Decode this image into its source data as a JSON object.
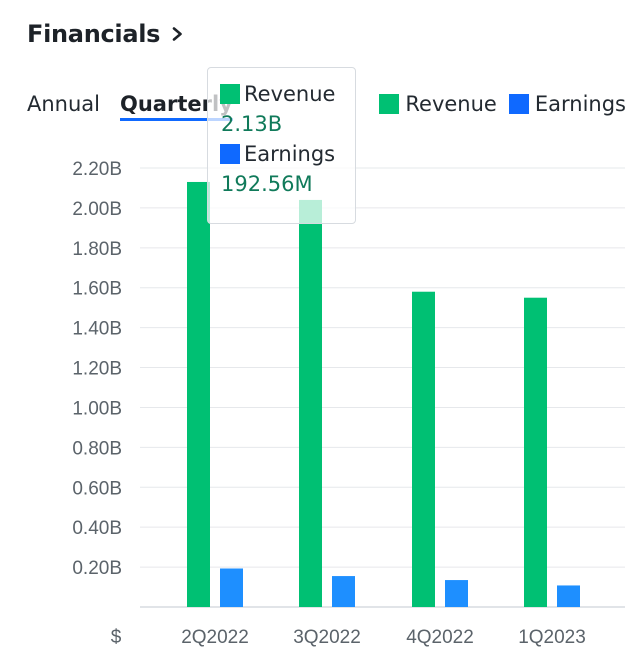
{
  "header": {
    "title": "Financials"
  },
  "tabs": [
    {
      "label": "Annual"
    },
    {
      "label": "Quarterly"
    }
  ],
  "legend": [
    {
      "label": "Revenue",
      "color": "#00c073"
    },
    {
      "label": "Earnings",
      "color": "#0f69ff"
    }
  ],
  "tooltip": {
    "revenue_label": "Revenue",
    "revenue_value": "2.13B",
    "earnings_label": "Earnings",
    "earnings_value": "192.56M"
  },
  "chart_data": {
    "type": "bar",
    "title": "",
    "categories": [
      "2Q2022",
      "3Q2022",
      "4Q2022",
      "1Q2023"
    ],
    "series": [
      {
        "name": "Revenue",
        "color": "#00c073",
        "values": [
          2.13,
          2.04,
          1.58,
          1.55
        ]
      },
      {
        "name": "Earnings",
        "color": "#1e8fff",
        "values": [
          0.193,
          0.155,
          0.135,
          0.108
        ]
      }
    ],
    "ylim": [
      0,
      2.2
    ],
    "yticks": [
      "0.20B",
      "0.40B",
      "0.60B",
      "0.80B",
      "1.00B",
      "1.20B",
      "1.40B",
      "1.60B",
      "1.80B",
      "2.00B",
      "2.20B"
    ],
    "ytick_values": [
      0.2,
      0.4,
      0.6,
      0.8,
      1.0,
      1.2,
      1.4,
      1.6,
      1.8,
      2.0,
      2.2
    ],
    "currency_label": "$",
    "grid": true
  }
}
